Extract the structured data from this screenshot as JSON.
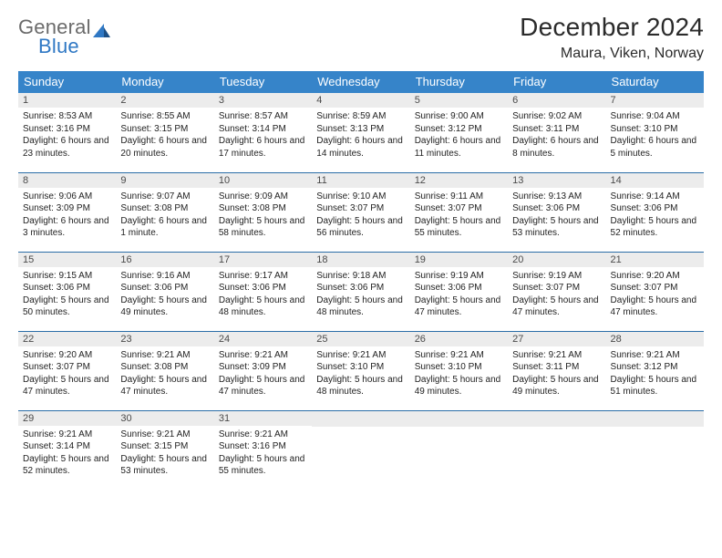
{
  "brand": {
    "word1": "General",
    "word2": "Blue"
  },
  "title": {
    "month": "December 2024",
    "location": "Maura, Viken, Norway"
  },
  "colors": {
    "headerBg": "#3684c9",
    "rowDivider": "#2b6ea8",
    "dayBarBg": "#ececec",
    "brandBlue": "#2f78c4",
    "brandGray": "#6b6b6b"
  },
  "weekdays": [
    "Sunday",
    "Monday",
    "Tuesday",
    "Wednesday",
    "Thursday",
    "Friday",
    "Saturday"
  ],
  "days": [
    {
      "n": "1",
      "sunrise": "Sunrise: 8:53 AM",
      "sunset": "Sunset: 3:16 PM",
      "daylight": "Daylight: 6 hours and 23 minutes."
    },
    {
      "n": "2",
      "sunrise": "Sunrise: 8:55 AM",
      "sunset": "Sunset: 3:15 PM",
      "daylight": "Daylight: 6 hours and 20 minutes."
    },
    {
      "n": "3",
      "sunrise": "Sunrise: 8:57 AM",
      "sunset": "Sunset: 3:14 PM",
      "daylight": "Daylight: 6 hours and 17 minutes."
    },
    {
      "n": "4",
      "sunrise": "Sunrise: 8:59 AM",
      "sunset": "Sunset: 3:13 PM",
      "daylight": "Daylight: 6 hours and 14 minutes."
    },
    {
      "n": "5",
      "sunrise": "Sunrise: 9:00 AM",
      "sunset": "Sunset: 3:12 PM",
      "daylight": "Daylight: 6 hours and 11 minutes."
    },
    {
      "n": "6",
      "sunrise": "Sunrise: 9:02 AM",
      "sunset": "Sunset: 3:11 PM",
      "daylight": "Daylight: 6 hours and 8 minutes."
    },
    {
      "n": "7",
      "sunrise": "Sunrise: 9:04 AM",
      "sunset": "Sunset: 3:10 PM",
      "daylight": "Daylight: 6 hours and 5 minutes."
    },
    {
      "n": "8",
      "sunrise": "Sunrise: 9:06 AM",
      "sunset": "Sunset: 3:09 PM",
      "daylight": "Daylight: 6 hours and 3 minutes."
    },
    {
      "n": "9",
      "sunrise": "Sunrise: 9:07 AM",
      "sunset": "Sunset: 3:08 PM",
      "daylight": "Daylight: 6 hours and 1 minute."
    },
    {
      "n": "10",
      "sunrise": "Sunrise: 9:09 AM",
      "sunset": "Sunset: 3:08 PM",
      "daylight": "Daylight: 5 hours and 58 minutes."
    },
    {
      "n": "11",
      "sunrise": "Sunrise: 9:10 AM",
      "sunset": "Sunset: 3:07 PM",
      "daylight": "Daylight: 5 hours and 56 minutes."
    },
    {
      "n": "12",
      "sunrise": "Sunrise: 9:11 AM",
      "sunset": "Sunset: 3:07 PM",
      "daylight": "Daylight: 5 hours and 55 minutes."
    },
    {
      "n": "13",
      "sunrise": "Sunrise: 9:13 AM",
      "sunset": "Sunset: 3:06 PM",
      "daylight": "Daylight: 5 hours and 53 minutes."
    },
    {
      "n": "14",
      "sunrise": "Sunrise: 9:14 AM",
      "sunset": "Sunset: 3:06 PM",
      "daylight": "Daylight: 5 hours and 52 minutes."
    },
    {
      "n": "15",
      "sunrise": "Sunrise: 9:15 AM",
      "sunset": "Sunset: 3:06 PM",
      "daylight": "Daylight: 5 hours and 50 minutes."
    },
    {
      "n": "16",
      "sunrise": "Sunrise: 9:16 AM",
      "sunset": "Sunset: 3:06 PM",
      "daylight": "Daylight: 5 hours and 49 minutes."
    },
    {
      "n": "17",
      "sunrise": "Sunrise: 9:17 AM",
      "sunset": "Sunset: 3:06 PM",
      "daylight": "Daylight: 5 hours and 48 minutes."
    },
    {
      "n": "18",
      "sunrise": "Sunrise: 9:18 AM",
      "sunset": "Sunset: 3:06 PM",
      "daylight": "Daylight: 5 hours and 48 minutes."
    },
    {
      "n": "19",
      "sunrise": "Sunrise: 9:19 AM",
      "sunset": "Sunset: 3:06 PM",
      "daylight": "Daylight: 5 hours and 47 minutes."
    },
    {
      "n": "20",
      "sunrise": "Sunrise: 9:19 AM",
      "sunset": "Sunset: 3:07 PM",
      "daylight": "Daylight: 5 hours and 47 minutes."
    },
    {
      "n": "21",
      "sunrise": "Sunrise: 9:20 AM",
      "sunset": "Sunset: 3:07 PM",
      "daylight": "Daylight: 5 hours and 47 minutes."
    },
    {
      "n": "22",
      "sunrise": "Sunrise: 9:20 AM",
      "sunset": "Sunset: 3:07 PM",
      "daylight": "Daylight: 5 hours and 47 minutes."
    },
    {
      "n": "23",
      "sunrise": "Sunrise: 9:21 AM",
      "sunset": "Sunset: 3:08 PM",
      "daylight": "Daylight: 5 hours and 47 minutes."
    },
    {
      "n": "24",
      "sunrise": "Sunrise: 9:21 AM",
      "sunset": "Sunset: 3:09 PM",
      "daylight": "Daylight: 5 hours and 47 minutes."
    },
    {
      "n": "25",
      "sunrise": "Sunrise: 9:21 AM",
      "sunset": "Sunset: 3:10 PM",
      "daylight": "Daylight: 5 hours and 48 minutes."
    },
    {
      "n": "26",
      "sunrise": "Sunrise: 9:21 AM",
      "sunset": "Sunset: 3:10 PM",
      "daylight": "Daylight: 5 hours and 49 minutes."
    },
    {
      "n": "27",
      "sunrise": "Sunrise: 9:21 AM",
      "sunset": "Sunset: 3:11 PM",
      "daylight": "Daylight: 5 hours and 49 minutes."
    },
    {
      "n": "28",
      "sunrise": "Sunrise: 9:21 AM",
      "sunset": "Sunset: 3:12 PM",
      "daylight": "Daylight: 5 hours and 51 minutes."
    },
    {
      "n": "29",
      "sunrise": "Sunrise: 9:21 AM",
      "sunset": "Sunset: 3:14 PM",
      "daylight": "Daylight: 5 hours and 52 minutes."
    },
    {
      "n": "30",
      "sunrise": "Sunrise: 9:21 AM",
      "sunset": "Sunset: 3:15 PM",
      "daylight": "Daylight: 5 hours and 53 minutes."
    },
    {
      "n": "31",
      "sunrise": "Sunrise: 9:21 AM",
      "sunset": "Sunset: 3:16 PM",
      "daylight": "Daylight: 5 hours and 55 minutes."
    }
  ]
}
